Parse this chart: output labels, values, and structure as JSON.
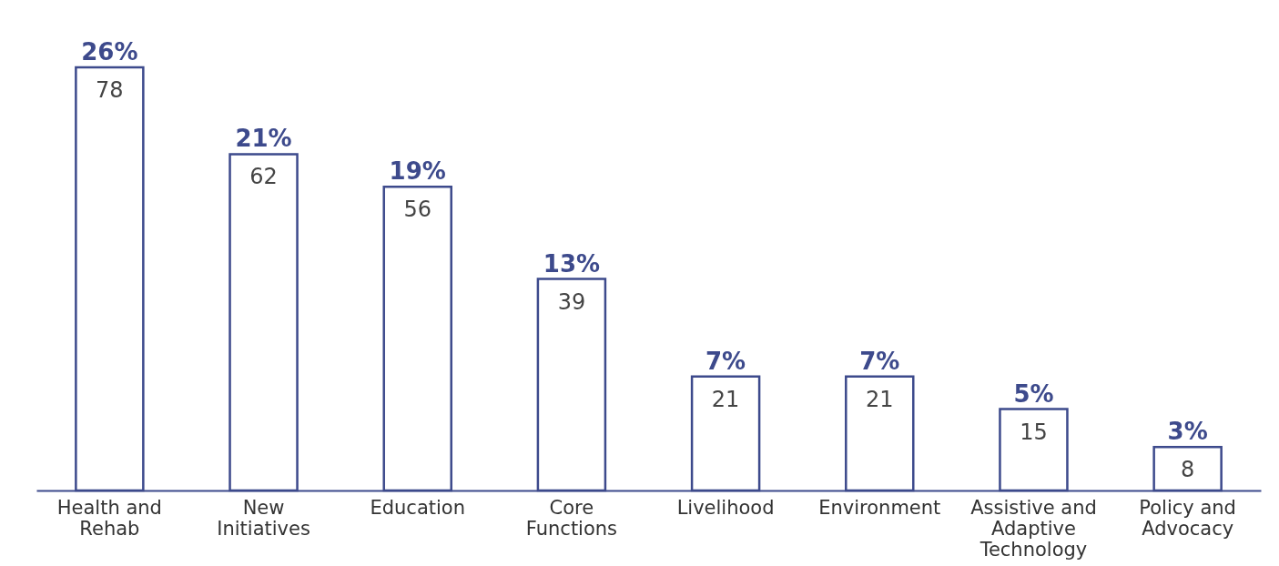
{
  "chart_data": {
    "type": "bar",
    "categories": [
      "Health and Rehab",
      "New Initiatives",
      "Education",
      "Core Functions",
      "Livelihood",
      "Environment",
      "Assistive and Adaptive Technology",
      "Policy and Advocacy"
    ],
    "values": [
      78,
      62,
      56,
      39,
      21,
      21,
      15,
      8
    ],
    "color": "#3d4a8c",
    "data_labels": true,
    "annotations": [
      {
        "text": "26%",
        "x": "Health and Rehab",
        "y": 78
      },
      {
        "text": "21%",
        "x": "New Initiatives",
        "y": 62
      },
      {
        "text": "19%",
        "x": "Education",
        "y": 56
      },
      {
        "text": "13%",
        "x": "Core Functions",
        "y": 39
      },
      {
        "text": "7%",
        "x": "Livelihood",
        "y": 21
      },
      {
        "text": "7%",
        "x": "Environment",
        "y": 21
      },
      {
        "text": "5%",
        "x": "Assistive and Adaptive Technology",
        "y": 15
      },
      {
        "text": "3%",
        "x": "Policy and Advocacy",
        "y": 8
      }
    ]
  }
}
